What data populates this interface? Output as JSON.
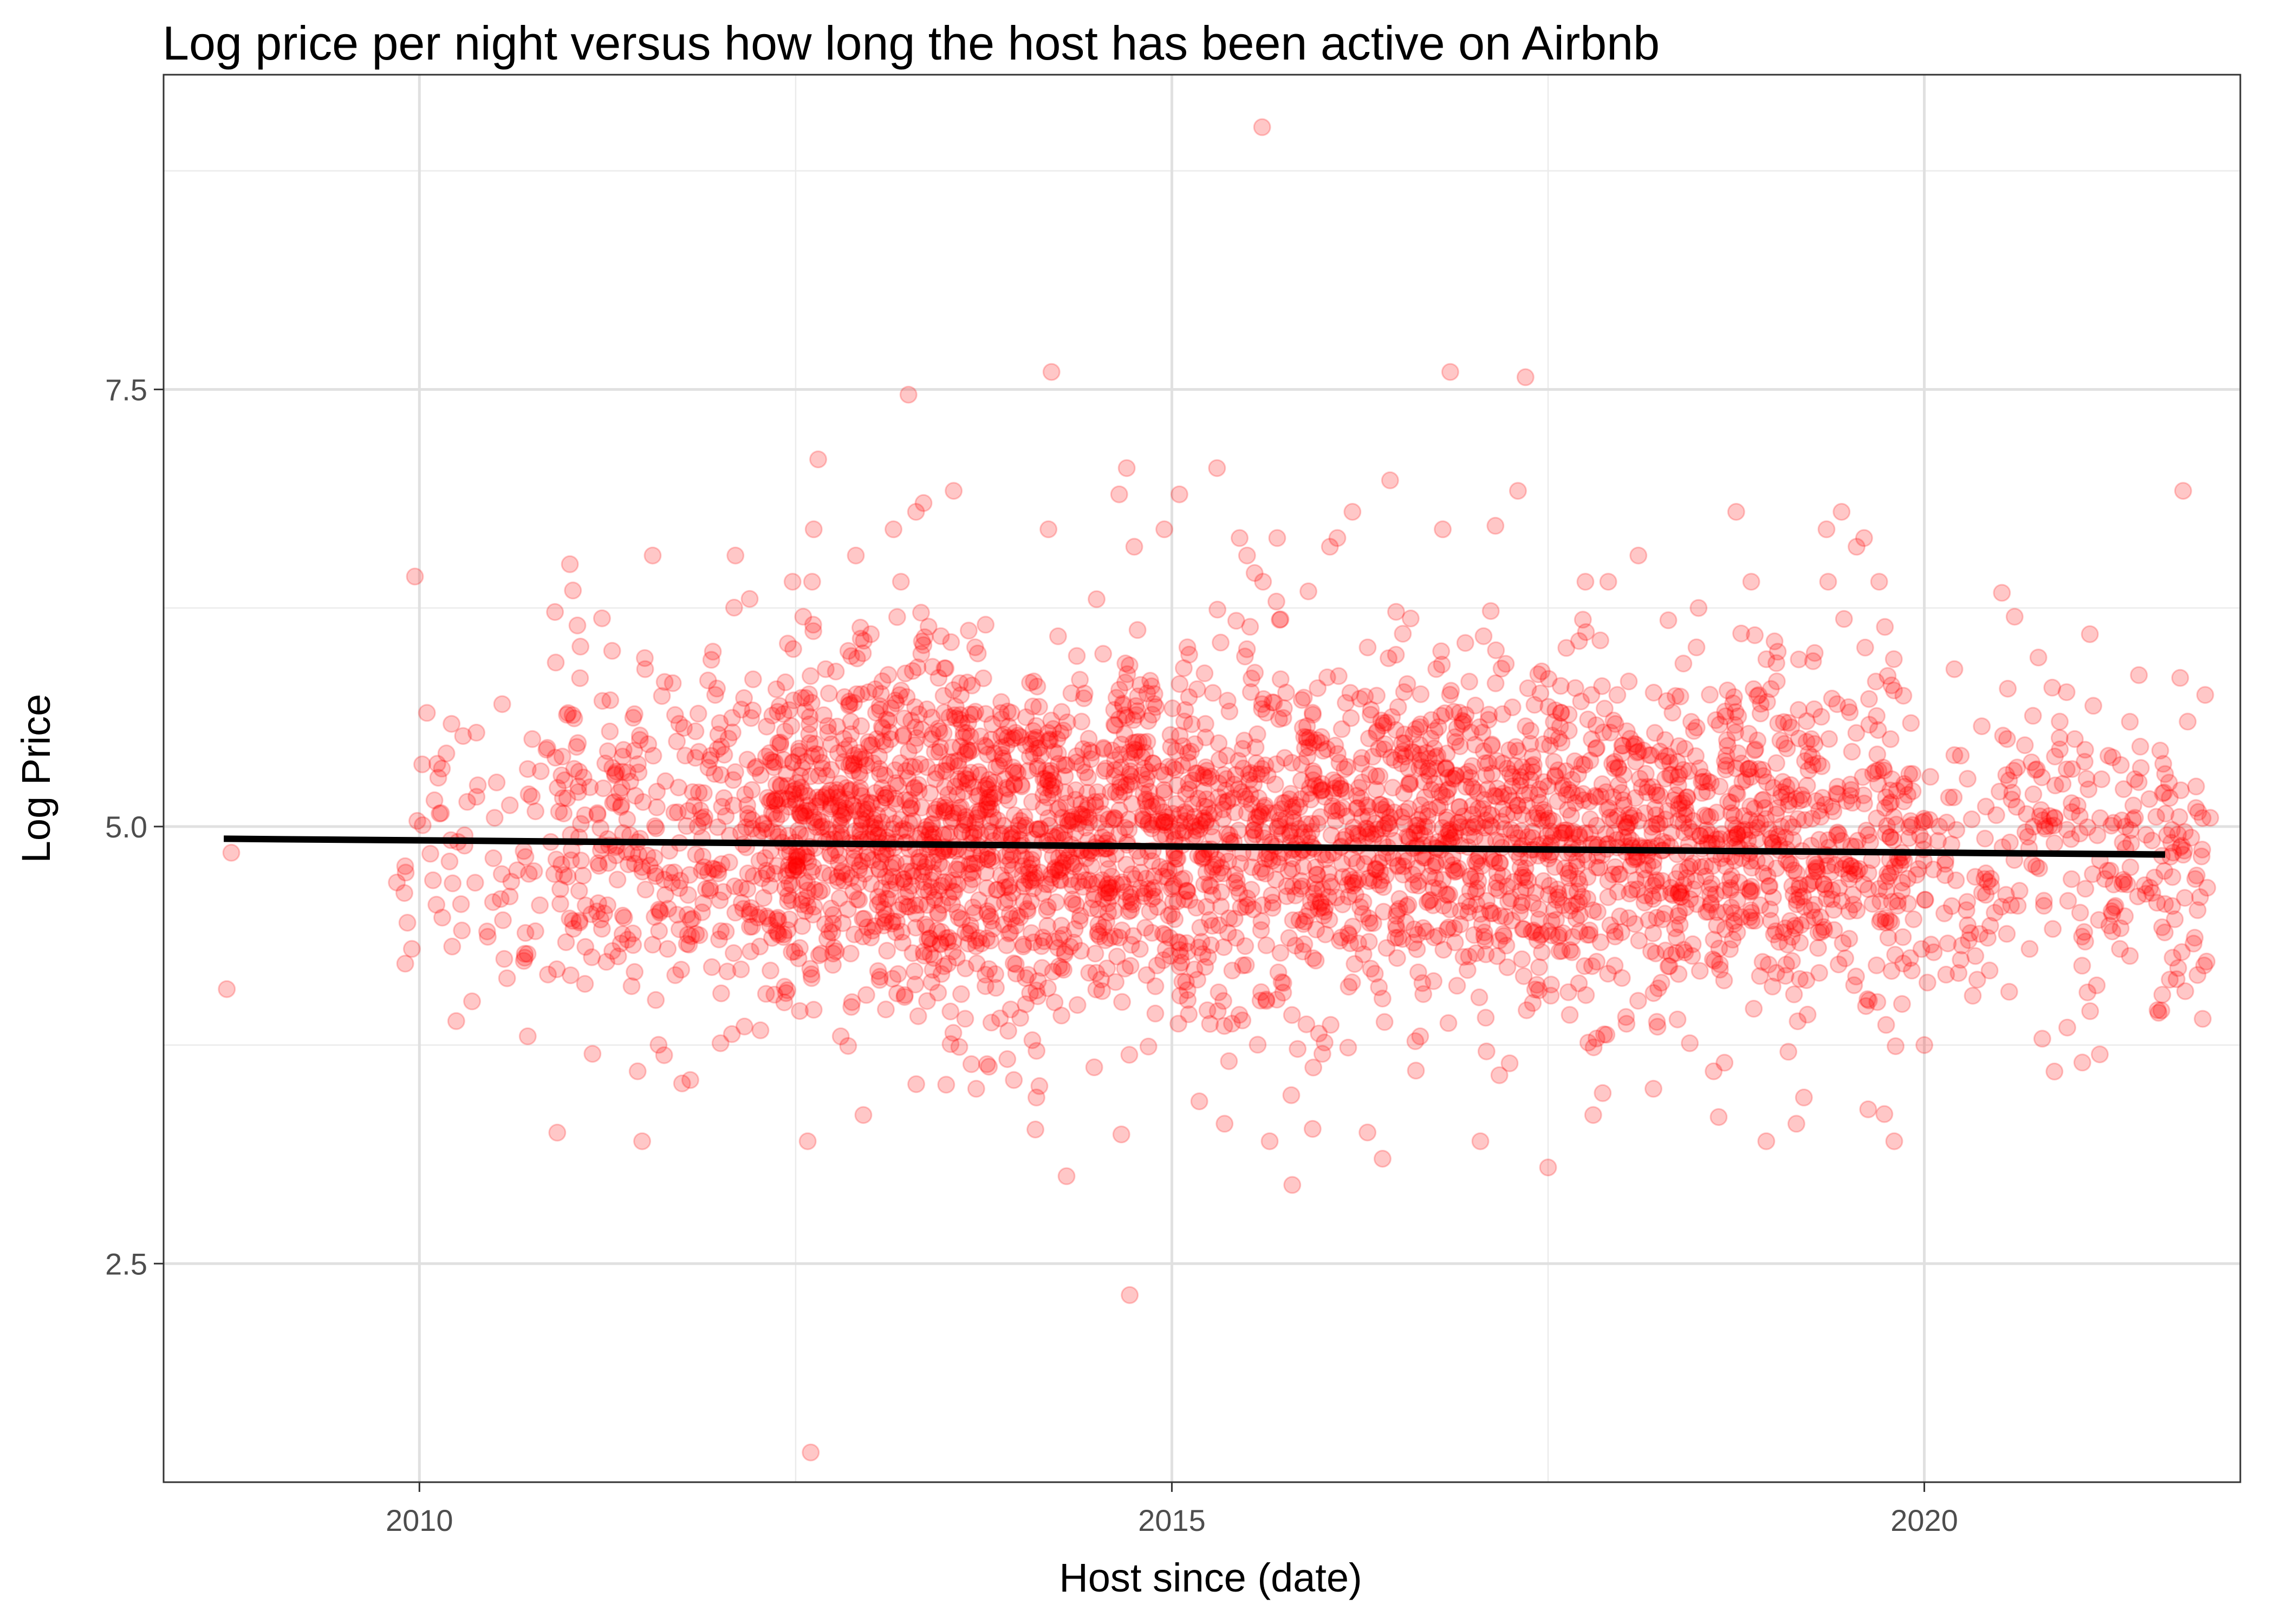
{
  "chart_data": {
    "type": "scatter",
    "title": "Log price per night versus how long the host has been active on Airbnb",
    "xlabel": "Host since (date)",
    "ylabel": "Log Price",
    "x_axis_kind": "date (years)",
    "xlim": [
      2008.3,
      2022.1
    ],
    "ylim": [
      1.25,
      9.3
    ],
    "x_ticks": [
      2010,
      2015,
      2020
    ],
    "x_tick_labels": [
      "2010",
      "2015",
      "2020"
    ],
    "y_ticks": [
      2.5,
      5.0,
      7.5
    ],
    "y_tick_labels": [
      "2.5",
      "5.0",
      "7.5"
    ],
    "grid": true,
    "legend": "none",
    "point_color": "#ff0000",
    "point_alpha": 0.22,
    "trend_color": "#000000",
    "trend_line": {
      "x": [
        2008.7,
        2021.6
      ],
      "y": [
        4.93,
        4.84
      ]
    },
    "series": [
      {
        "points": [
          [
            2008.72,
            4.07
          ],
          [
            2008.75,
            4.85
          ],
          [
            2009.85,
            4.68
          ],
          [
            2009.9,
            4.62
          ],
          [
            2009.92,
            4.45
          ],
          [
            2009.95,
            4.3
          ],
          [
            2009.97,
            6.43
          ],
          [
            2010.05,
            5.65
          ],
          [
            2010.1,
            5.15
          ],
          [
            2010.2,
            4.8
          ],
          [
            2010.3,
            4.95
          ],
          [
            2010.35,
            4.0
          ],
          [
            2010.45,
            4.4
          ],
          [
            2010.5,
            5.05
          ],
          [
            2010.55,
            5.7
          ],
          [
            2010.6,
            4.6
          ],
          [
            2010.65,
            4.75
          ],
          [
            2010.7,
            4.25
          ],
          [
            2010.72,
            3.8
          ],
          [
            2010.75,
            5.5
          ],
          [
            2010.8,
            4.55
          ],
          [
            2010.85,
            5.45
          ],
          [
            2010.95,
            5.4
          ],
          [
            2011.0,
            6.5
          ],
          [
            2011.02,
            6.35
          ],
          [
            2011.05,
            6.15
          ],
          [
            2011.1,
            4.1
          ],
          [
            2011.15,
            3.7
          ],
          [
            2011.25,
            4.55
          ],
          [
            2011.35,
            5.4
          ],
          [
            2011.4,
            4.95
          ],
          [
            2011.45,
            3.6
          ],
          [
            2011.48,
            3.2
          ],
          [
            2011.5,
            5.9
          ],
          [
            2011.55,
            6.55
          ],
          [
            2011.65,
            4.3
          ],
          [
            2011.7,
            4.15
          ],
          [
            2011.8,
            3.55
          ],
          [
            2011.85,
            5.0
          ],
          [
            2011.95,
            6.0
          ],
          [
            2012.1,
            6.55
          ],
          [
            2012.25,
            4.95
          ],
          [
            2012.45,
            4.75
          ],
          [
            2012.55,
            6.2
          ],
          [
            2012.58,
            3.2
          ],
          [
            2012.6,
            1.42
          ],
          [
            2012.62,
            6.7
          ],
          [
            2012.65,
            7.1
          ],
          [
            2012.7,
            5.9
          ],
          [
            2012.8,
            3.8
          ],
          [
            2012.9,
            6.55
          ],
          [
            2012.95,
            3.35
          ],
          [
            2013.0,
            6.1
          ],
          [
            2013.05,
            4.95
          ],
          [
            2013.15,
            6.7
          ],
          [
            2013.2,
            6.4
          ],
          [
            2013.25,
            7.47
          ],
          [
            2013.3,
            6.8
          ],
          [
            2013.35,
            6.85
          ],
          [
            2013.45,
            5.85
          ],
          [
            2013.55,
            6.92
          ],
          [
            2013.7,
            3.5
          ],
          [
            2013.8,
            5.1
          ],
          [
            2013.95,
            3.55
          ],
          [
            2014.1,
            3.45
          ],
          [
            2014.18,
            6.7
          ],
          [
            2014.2,
            7.6
          ],
          [
            2014.25,
            4.2
          ],
          [
            2014.3,
            3.0
          ],
          [
            2014.4,
            5.6
          ],
          [
            2014.5,
            6.3
          ],
          [
            2014.6,
            4.6
          ],
          [
            2014.65,
            6.9
          ],
          [
            2014.7,
            7.05
          ],
          [
            2014.72,
            2.32
          ],
          [
            2014.75,
            6.6
          ],
          [
            2014.85,
            5.2
          ],
          [
            2014.95,
            6.7
          ],
          [
            2015.0,
            4.5
          ],
          [
            2015.05,
            6.9
          ],
          [
            2015.15,
            5.0
          ],
          [
            2015.3,
            7.05
          ],
          [
            2015.35,
            3.3
          ],
          [
            2015.45,
            6.65
          ],
          [
            2015.5,
            6.55
          ],
          [
            2015.55,
            6.45
          ],
          [
            2015.6,
            9.0
          ],
          [
            2015.65,
            3.2
          ],
          [
            2015.7,
            6.65
          ],
          [
            2015.8,
            2.95
          ],
          [
            2015.9,
            5.4
          ],
          [
            2016.0,
            3.7
          ],
          [
            2016.05,
            6.6
          ],
          [
            2016.1,
            6.65
          ],
          [
            2016.2,
            6.8
          ],
          [
            2016.3,
            3.25
          ],
          [
            2016.4,
            3.1
          ],
          [
            2016.45,
            6.98
          ],
          [
            2016.55,
            5.4
          ],
          [
            2016.65,
            3.8
          ],
          [
            2016.8,
            6.7
          ],
          [
            2016.85,
            7.6
          ],
          [
            2016.95,
            6.05
          ],
          [
            2017.05,
            3.2
          ],
          [
            2017.15,
            6.72
          ],
          [
            2017.2,
            5.1
          ],
          [
            2017.3,
            6.92
          ],
          [
            2017.35,
            7.57
          ],
          [
            2017.5,
            3.05
          ],
          [
            2017.6,
            4.55
          ],
          [
            2017.7,
            5.3
          ],
          [
            2017.8,
            3.35
          ],
          [
            2017.9,
            6.4
          ],
          [
            2018.0,
            5.15
          ],
          [
            2018.1,
            6.55
          ],
          [
            2018.2,
            3.5
          ],
          [
            2018.35,
            4.7
          ],
          [
            2018.5,
            6.25
          ],
          [
            2018.6,
            3.6
          ],
          [
            2018.75,
            6.8
          ],
          [
            2018.85,
            6.4
          ],
          [
            2018.95,
            3.2
          ],
          [
            2019.05,
            5.0
          ],
          [
            2019.15,
            3.3
          ],
          [
            2019.2,
            3.45
          ],
          [
            2019.25,
            5.5
          ],
          [
            2019.35,
            6.7
          ],
          [
            2019.45,
            6.8
          ],
          [
            2019.5,
            4.7
          ],
          [
            2019.55,
            6.6
          ],
          [
            2019.6,
            6.65
          ],
          [
            2019.7,
            6.4
          ],
          [
            2019.8,
            3.2
          ],
          [
            2019.9,
            5.3
          ],
          [
            2020.0,
            3.75
          ],
          [
            2020.1,
            5.0
          ],
          [
            2020.2,
            5.9
          ],
          [
            2020.4,
            4.7
          ],
          [
            2020.5,
            5.2
          ],
          [
            2020.55,
            5.5
          ],
          [
            2020.6,
            6.2
          ],
          [
            2020.7,
            4.3
          ],
          [
            2020.8,
            5.0
          ],
          [
            2020.9,
            5.6
          ],
          [
            2020.95,
            3.85
          ],
          [
            2021.0,
            5.5
          ],
          [
            2021.05,
            3.65
          ],
          [
            2021.1,
            6.1
          ],
          [
            2021.15,
            4.95
          ],
          [
            2021.2,
            4.7
          ],
          [
            2021.25,
            4.4
          ],
          [
            2021.3,
            4.3
          ],
          [
            2021.4,
            5.05
          ],
          [
            2021.5,
            4.65
          ],
          [
            2021.55,
            3.95
          ],
          [
            2021.6,
            5.3
          ],
          [
            2021.65,
            4.25
          ],
          [
            2021.7,
            5.85
          ],
          [
            2021.72,
            6.92
          ],
          [
            2021.75,
            5.6
          ],
          [
            2021.8,
            4.7
          ],
          [
            2021.85,
            3.9
          ],
          [
            2021.88,
            4.65
          ],
          [
            2021.9,
            5.05
          ]
        ],
        "dense_bands": [
          {
            "x_range": [
              2009.9,
              2010.9
            ],
            "y_center": 4.9,
            "y_spread": 0.42,
            "count": 60
          },
          {
            "x_range": [
              2010.9,
              2012.3
            ],
            "y_center": 4.92,
            "y_spread": 0.48,
            "count": 300
          },
          {
            "x_range": [
              2012.3,
              2014.0
            ],
            "y_center": 4.95,
            "y_spread": 0.5,
            "count": 900
          },
          {
            "x_range": [
              2014.0,
              2016.8
            ],
            "y_center": 4.93,
            "y_spread": 0.5,
            "count": 1200
          },
          {
            "x_range": [
              2016.8,
              2018.4
            ],
            "y_center": 4.92,
            "y_spread": 0.48,
            "count": 650
          },
          {
            "x_range": [
              2018.4,
              2019.9
            ],
            "y_center": 4.9,
            "y_spread": 0.5,
            "count": 500
          },
          {
            "x_range": [
              2019.9,
              2021.9
            ],
            "y_center": 4.85,
            "y_spread": 0.45,
            "count": 260
          }
        ]
      }
    ]
  }
}
